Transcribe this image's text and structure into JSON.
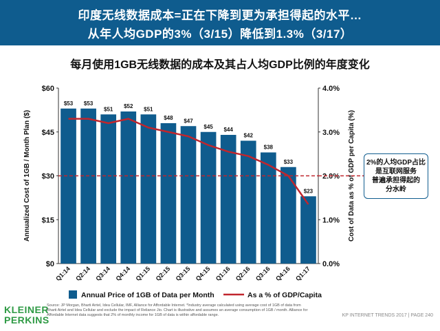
{
  "header": {
    "line1": "印度无线数据成本=正在下降到更为承担得起的水平…",
    "line2": "从年人均GDP的3%（3/15）降低到1.3%（3/17）"
  },
  "subtitle": "每月使用1GB无线数据的成本及其占人均GDP比例的年度变化",
  "note": {
    "lines": [
      "2%的人均GDP占比",
      "是互联网服务",
      "普遍承担得起的",
      "分水岭"
    ]
  },
  "logo": {
    "line1": "KLEINER",
    "line2": "PERKINS"
  },
  "source": "Source: JP Morgan, Bharti Airtel, Idea Cellular, IMF, Alliance for Affordable Internet. *Industry average calculated using average cost of 1GB of data from Bharti Airtel and Idea Cellular and exclude the impact of Reliance Jio. Chart is illustrative and assumes an average consumption of 1GB / month. Alliance for Affordable Internet data suggests that 2% of monthly income for 1GB of data is within affordable range.",
  "footer": "KP INTERNET TRENDS 2017  |  PAGE 240",
  "colors": {
    "bar": "#0f5c8e",
    "line": "#c0262d",
    "threshold": "#c0262d",
    "header_bg": "#0f5c8e"
  },
  "chart_data": {
    "type": "bar",
    "categories": [
      "Q1:14",
      "Q2:14",
      "Q3:14",
      "Q4:14",
      "Q1:15",
      "Q2:15",
      "Q3:15",
      "Q4:15",
      "Q1:16",
      "Q2:16",
      "Q3:16",
      "Q4:16",
      "Q1:17"
    ],
    "series": [
      {
        "name": "Annual Price of 1GB of Data per Month",
        "type": "bar",
        "axis": "left",
        "values": [
          53,
          53,
          51,
          52,
          51,
          48,
          47,
          45,
          44,
          42,
          38,
          33,
          23
        ],
        "labels": [
          "$53",
          "$53",
          "$51",
          "$52",
          "$51",
          "$48",
          "$47",
          "$45",
          "$44",
          "$42",
          "$38",
          "$33",
          "$23"
        ]
      },
      {
        "name": "As a % of GDP/Capita",
        "type": "line",
        "axis": "right",
        "values": [
          3.3,
          3.3,
          3.2,
          3.3,
          3.1,
          3.0,
          2.9,
          2.7,
          2.55,
          2.45,
          2.25,
          2.0,
          1.35
        ]
      }
    ],
    "y_left": {
      "label": "Annualized Cost of 1GB / Month Plan ($)",
      "ylim": [
        0,
        60
      ],
      "ticks": [
        "$0",
        "$15",
        "$30",
        "$45",
        "$60"
      ],
      "tick_values": [
        0,
        15,
        30,
        45,
        60
      ]
    },
    "y_right": {
      "label": "Cost of Data as % of GDP per Capita (%)",
      "ylim": [
        0,
        4
      ],
      "ticks": [
        "0.0%",
        "1.0%",
        "2.0%",
        "3.0%",
        "4.0%"
      ],
      "tick_values": [
        0,
        1,
        2,
        3,
        4
      ]
    },
    "threshold": {
      "value": 2.0,
      "axis": "right",
      "style": "dashed"
    },
    "legend": {
      "position": "bottom"
    }
  }
}
